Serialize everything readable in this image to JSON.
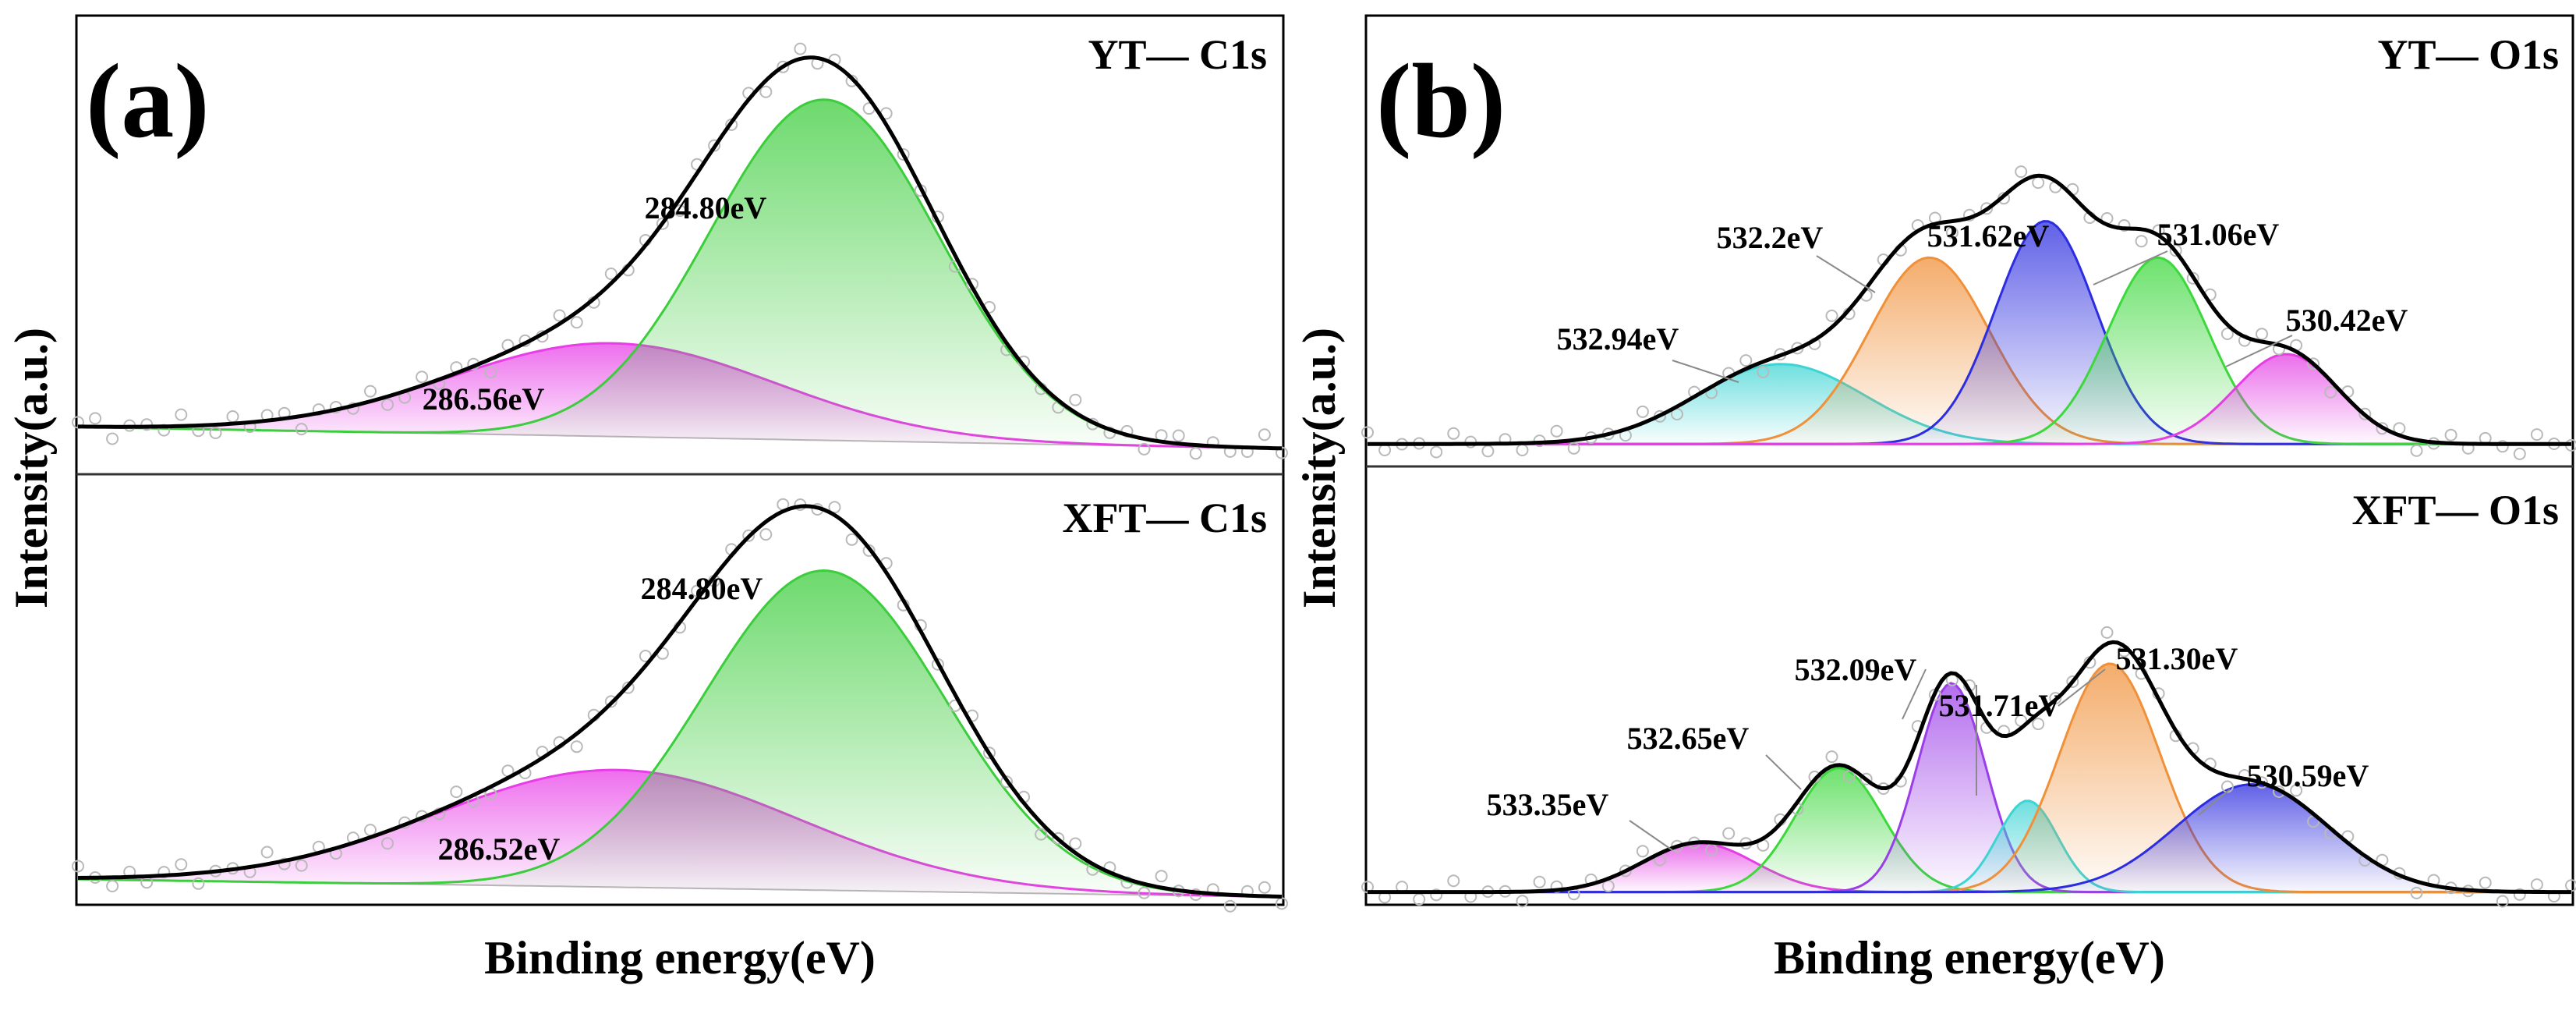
{
  "figure": {
    "x_label": "Binding energy(eV)",
    "y_label": "Intensity(a.u.)"
  },
  "chart_data": [
    {
      "panel": "(a)",
      "type": "line",
      "title": "YT— C1s",
      "xlabel": "Binding energy(eV)",
      "ylabel": "Intensity(a.u.)",
      "xlim": [
        291.0,
        281.0
      ],
      "ylim": [
        0,
        1.12
      ],
      "x_direction": "decreasing",
      "background": [
        0.06,
        0.0
      ],
      "peaks": [
        {
          "name": "286.56eV",
          "label": "286.56eV",
          "center": 286.56,
          "height": 0.26,
          "width": 1.35,
          "color": "#e83ee8"
        },
        {
          "name": "284.80eV",
          "label": "284.80eV",
          "center": 284.8,
          "height": 0.95,
          "width": 0.95,
          "color": "#3ccd3c"
        }
      ]
    },
    {
      "panel": "(a)",
      "type": "line",
      "title": "XFT— C1s",
      "xlabel": "Binding energy(eV)",
      "ylabel": "Intensity(a.u.)",
      "xlim": [
        291.0,
        281.0
      ],
      "ylim": [
        0,
        1.12
      ],
      "x_direction": "decreasing",
      "background": [
        0.05,
        0.0
      ],
      "peaks": [
        {
          "name": "286.52eV",
          "label": "286.52eV",
          "center": 286.52,
          "height": 0.33,
          "width": 1.5,
          "color": "#e83ee8"
        },
        {
          "name": "284.80eV",
          "label": "284.80eV",
          "center": 284.8,
          "height": 0.9,
          "width": 1.0,
          "color": "#3ccd3c"
        }
      ]
    },
    {
      "panel": "(b)",
      "type": "line",
      "title": "YT— O1s",
      "xlabel": "Binding energy(eV)",
      "ylabel": "Intensity(a.u.)",
      "xlim": [
        535.0,
        529.0
      ],
      "ylim": [
        0,
        1.2
      ],
      "x_direction": "decreasing",
      "background": [
        0.03,
        0.03
      ],
      "peaks": [
        {
          "name": "532.94eV",
          "label": "532.94eV",
          "center": 532.94,
          "height": 0.24,
          "width": 0.42,
          "color": "#3fd4d4"
        },
        {
          "name": "532.2eV",
          "label": "532.2eV",
          "center": 532.2,
          "height": 0.56,
          "width": 0.3,
          "color": "#f0913a"
        },
        {
          "name": "531.62eV",
          "label": "531.62eV",
          "center": 531.62,
          "height": 0.67,
          "width": 0.25,
          "color": "#2c2ce0"
        },
        {
          "name": "531.06eV",
          "label": "531.06eV",
          "center": 531.06,
          "height": 0.56,
          "width": 0.25,
          "color": "#3cd83c"
        },
        {
          "name": "530.42eV",
          "label": "530.42eV",
          "center": 530.42,
          "height": 0.27,
          "width": 0.26,
          "color": "#e43ee4"
        }
      ]
    },
    {
      "panel": "(b)",
      "type": "line",
      "title": "XFT— O1s",
      "xlabel": "Binding energy(eV)",
      "ylabel": "Intensity(a.u.)",
      "xlim": [
        535.0,
        529.0
      ],
      "ylim": [
        0,
        1.2
      ],
      "x_direction": "decreasing",
      "background": [
        0.02,
        0.02
      ],
      "peaks": [
        {
          "name": "533.35eV",
          "label": "533.35eV",
          "center": 533.35,
          "height": 0.15,
          "width": 0.28,
          "color": "#e43ee4"
        },
        {
          "name": "532.65eV",
          "label": "532.65eV",
          "center": 532.65,
          "height": 0.38,
          "width": 0.22,
          "color": "#3cd83c"
        },
        {
          "name": "532.09eV",
          "label": "532.09eV",
          "center": 532.09,
          "height": 0.64,
          "width": 0.17,
          "color": "#9b3ee8"
        },
        {
          "name": "531.71eV",
          "label": "531.71eV",
          "center": 531.71,
          "height": 0.28,
          "width": 0.15,
          "color": "#3fd4d4"
        },
        {
          "name": "531.30eV",
          "label": "531.30eV",
          "center": 531.3,
          "height": 0.7,
          "width": 0.25,
          "color": "#f0913a"
        },
        {
          "name": "530.59eV",
          "label": "530.59eV",
          "center": 530.59,
          "height": 0.33,
          "width": 0.38,
          "color": "#2c2ce0"
        }
      ]
    }
  ]
}
